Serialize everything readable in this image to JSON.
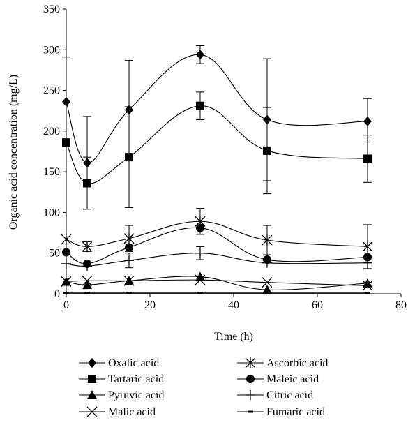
{
  "chart_data": {
    "type": "line",
    "xlabel": "Time (h)",
    "ylabel": "Organic acid concentration (mg/L)",
    "xlim": [
      0,
      80
    ],
    "ylim": [
      0,
      350
    ],
    "xticks": [
      0,
      20,
      40,
      60,
      80
    ],
    "yticks": [
      0,
      50,
      100,
      150,
      200,
      250,
      300,
      350
    ],
    "grid": false,
    "legend_position": "bottom",
    "x": [
      0,
      5,
      15,
      32,
      48,
      72
    ],
    "series": [
      {
        "name": "Oxalic acid",
        "marker": "diamond",
        "values": [
          236,
          161,
          226,
          294,
          214,
          212
        ],
        "errors": [
          55,
          57,
          61,
          11,
          75,
          28
        ]
      },
      {
        "name": "Tartaric acid",
        "marker": "square",
        "values": [
          186,
          136,
          168,
          231,
          176,
          166
        ],
        "errors": [
          null,
          32,
          62,
          17,
          53,
          29
        ]
      },
      {
        "name": "Pyruvic acid",
        "marker": "triangle",
        "values": [
          15,
          11,
          16,
          21,
          5,
          13
        ],
        "errors": [
          null,
          null,
          null,
          null,
          null,
          null
        ]
      },
      {
        "name": "Malic acid",
        "marker": "x",
        "values": [
          15,
          16,
          16,
          17,
          14,
          10
        ],
        "errors": [
          null,
          null,
          null,
          null,
          null,
          null
        ]
      },
      {
        "name": "Ascorbic acid",
        "marker": "asterisk",
        "values": [
          67,
          58,
          68,
          89,
          66,
          58
        ],
        "errors": [
          null,
          6,
          16,
          16,
          18,
          27
        ]
      },
      {
        "name": "Maleic acid",
        "marker": "circle",
        "values": [
          51,
          37,
          57,
          81,
          42,
          45
        ],
        "errors": [
          null,
          null,
          null,
          null,
          null,
          null
        ]
      },
      {
        "name": "Citric acid",
        "marker": "plus",
        "values": [
          37,
          34,
          41,
          50,
          38,
          38
        ],
        "errors": [
          null,
          null,
          9,
          8,
          null,
          null
        ]
      },
      {
        "name": "Fumaric acid",
        "marker": "dash",
        "values": [
          1,
          1,
          1,
          1,
          1,
          1
        ],
        "errors": [
          null,
          null,
          null,
          null,
          null,
          null
        ]
      }
    ]
  }
}
